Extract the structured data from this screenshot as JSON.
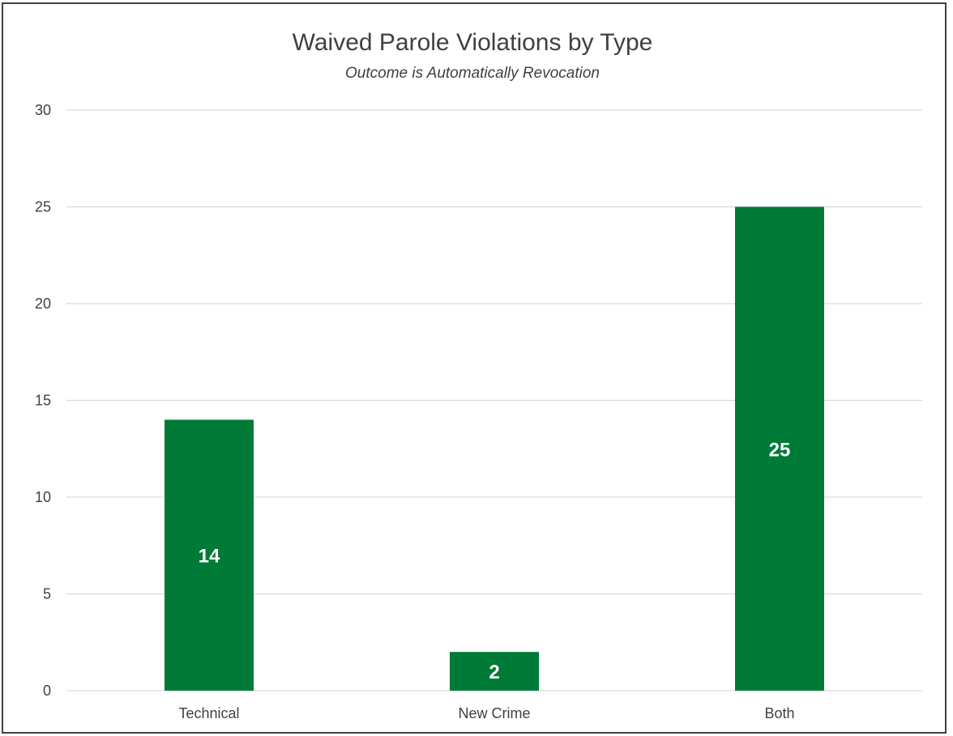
{
  "chart_data": {
    "type": "bar",
    "title": "Waived Parole Violations by Type",
    "subtitle": "Outcome is Automatically Revocation",
    "categories": [
      "Technical",
      "New Crime",
      "Both"
    ],
    "values": [
      14,
      2,
      25
    ],
    "data_labels": [
      "14",
      "2",
      "25"
    ],
    "ylim": [
      0,
      30
    ],
    "yticks": [
      0,
      5,
      10,
      15,
      20,
      25,
      30
    ],
    "grid": true,
    "legend": "none",
    "bar_color": "#007a37"
  }
}
